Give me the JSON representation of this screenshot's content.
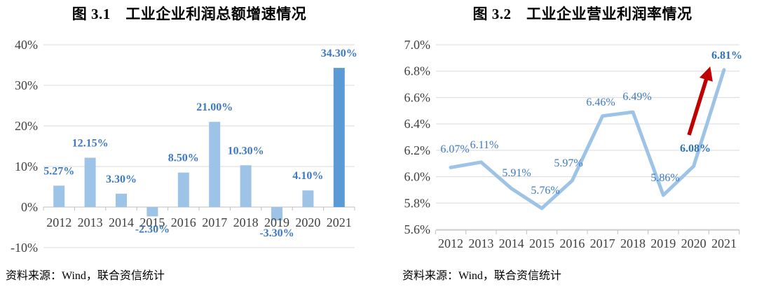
{
  "panels": [
    {
      "source": "资料来源：Wind，联合资信统计"
    },
    {
      "source": "资料来源：Wind，联合资信统计"
    }
  ],
  "colors": {
    "bar_light": "#9DC3E6",
    "bar_highlight": "#5B9BD5",
    "line": "#9DC3E6",
    "data_label": "#3E79C6",
    "data_label_bold": "#2E75B6",
    "axis_text": "#404040",
    "gridline": "#D9D9D9",
    "axis_line": "#BFBFBF",
    "arrow": "#C00000"
  },
  "chart_data": [
    {
      "type": "bar",
      "title": "图 3.1　工业企业利润总额增速情况",
      "categories": [
        "2012",
        "2013",
        "2014",
        "2015",
        "2016",
        "2017",
        "2018",
        "2019",
        "2020",
        "2021"
      ],
      "values": [
        5.27,
        12.15,
        3.3,
        -2.3,
        8.5,
        21.0,
        10.3,
        -3.3,
        4.1,
        34.3
      ],
      "labels": [
        "5.27%",
        "12.15%",
        "3.30%",
        "-2.30%",
        "8.50%",
        "21.00%",
        "10.30%",
        "-3.30%",
        "4.10%",
        "34.30%"
      ],
      "highlight_index": 9,
      "yticks": {
        "values": [
          40,
          30,
          20,
          10,
          0,
          -10
        ],
        "labels": [
          "40%",
          "30%",
          "20%",
          "10%",
          "0%",
          "-10%"
        ]
      },
      "ylim": [
        -10,
        40
      ],
      "xlabel": "",
      "ylabel": "",
      "grid": true,
      "legend": false
    },
    {
      "type": "line",
      "title": "图 3.2　工业企业营业利润率情况",
      "categories": [
        "2012",
        "2013",
        "2014",
        "2015",
        "2016",
        "2017",
        "2018",
        "2019",
        "2020",
        "2021"
      ],
      "values": [
        6.07,
        6.11,
        5.91,
        5.76,
        5.97,
        6.46,
        6.49,
        5.86,
        6.08,
        6.81
      ],
      "labels": [
        "6.07%",
        "6.11%",
        "5.91%",
        "5.76%",
        "5.97%",
        "6.46%",
        "6.49%",
        "5.86%",
        "6.08%",
        "6.81%"
      ],
      "bold_label_indices": [
        8,
        9
      ],
      "yticks": {
        "values": [
          7.0,
          6.8,
          6.6,
          6.4,
          6.2,
          6.0,
          5.8,
          5.6
        ],
        "labels": [
          "7.0%",
          "6.8%",
          "6.6%",
          "6.4%",
          "6.2%",
          "6.0%",
          "5.8%",
          "5.6%"
        ]
      },
      "ylim": [
        5.6,
        7.0
      ],
      "xlabel": "",
      "ylabel": "",
      "grid": true,
      "legend": false,
      "annotation": {
        "type": "up-arrow",
        "meaning": "sharp-rise-emphasis"
      }
    }
  ]
}
